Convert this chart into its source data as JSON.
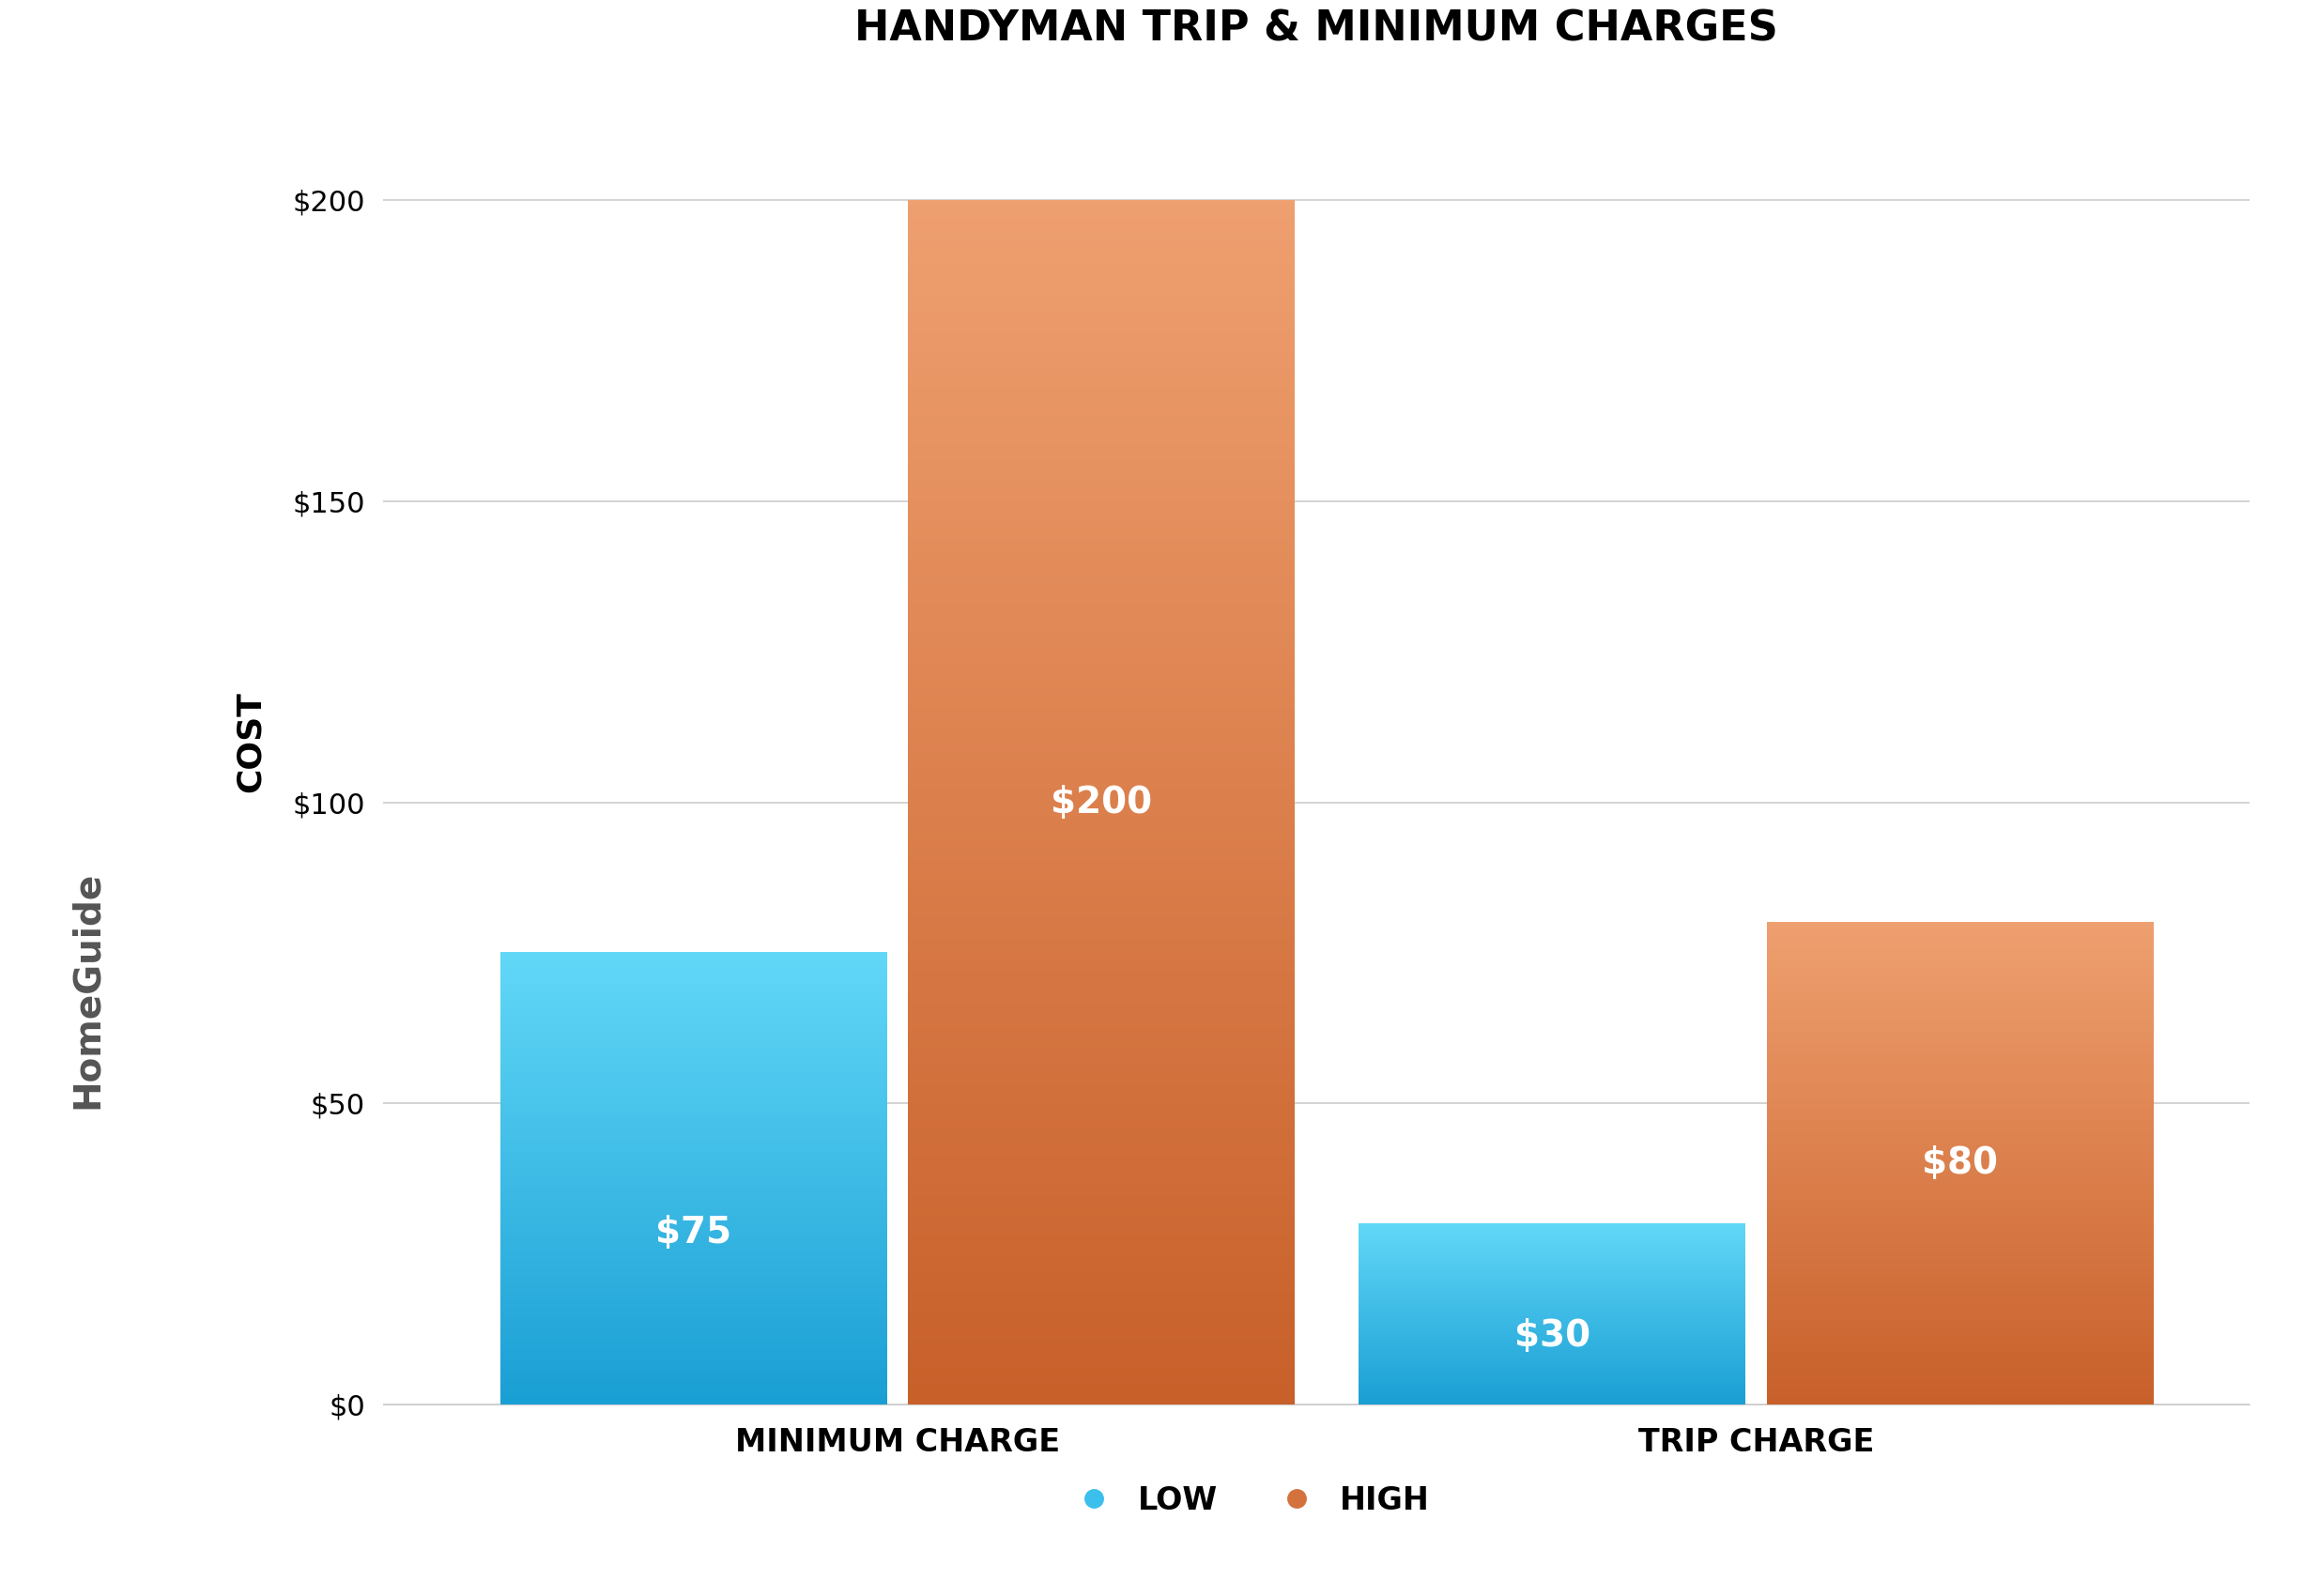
{
  "title": "HANDYMAN TRIP & MINIMUM CHARGES",
  "ylabel": "COST",
  "categories": [
    "MINIMUM CHARGE",
    "TRIP CHARGE"
  ],
  "low_values": [
    75,
    30
  ],
  "high_values": [
    200,
    80
  ],
  "low_labels": [
    "$75",
    "$30"
  ],
  "high_labels": [
    "$200",
    "$80"
  ],
  "low_color_top": "#62D8F8",
  "low_color_bottom": "#1A9FD4",
  "high_color_top": "#EFA070",
  "high_color_bottom": "#C8602A",
  "bar_width": 0.18,
  "ylim": [
    0,
    220
  ],
  "yticks": [
    0,
    50,
    100,
    150,
    200
  ],
  "ytick_labels": [
    "$0",
    "$50",
    "$100",
    "$150",
    "$200"
  ],
  "background_color": "#ffffff",
  "left_panel_color": "#111111",
  "bottom_panel_color": "#e8e8e8",
  "title_fontsize": 32,
  "ylabel_fontsize": 26,
  "tick_fontsize": 22,
  "xlabel_fontsize": 24,
  "bar_label_fontsize": 28,
  "legend_fontsize": 24,
  "homeguide_text": "HomeGuide",
  "homeguide_color": "#555555",
  "legend_low_color": "#3BBFED",
  "legend_high_color": "#D4723D",
  "group_centers": [
    0.32,
    0.72
  ],
  "bar_gap": 0.005
}
